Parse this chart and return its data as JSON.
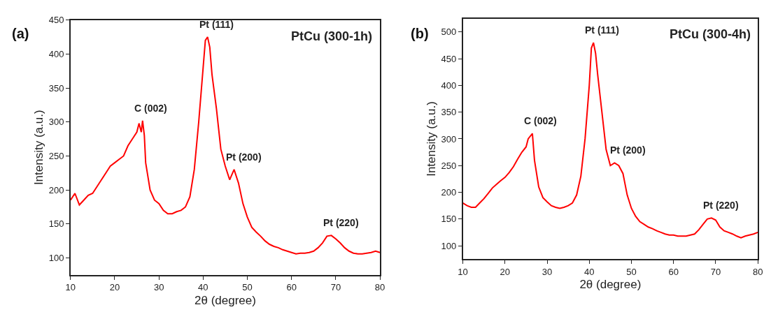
{
  "chart_data": [
    {
      "type": "line",
      "title": "PtCu (300-1h)",
      "xlabel": "2θ (degree)",
      "ylabel": "Intensity (a.u.)",
      "xlim": [
        10,
        80
      ],
      "xticks": [
        10,
        20,
        30,
        40,
        50,
        60,
        70,
        80
      ],
      "ylim": [
        75,
        450
      ],
      "yticks": [
        100,
        150,
        200,
        250,
        300,
        350,
        400,
        450
      ],
      "marker": "none",
      "line_style": "solid",
      "annotations": [
        "(a)",
        {
          "text": "C (002)",
          "x": 26.3,
          "y": 302
        },
        {
          "text": "Pt (111)",
          "x": 41,
          "y": 425
        },
        {
          "text": "Pt (200)",
          "x": 47,
          "y": 230
        },
        {
          "text": "Pt (220)",
          "x": 69,
          "y": 133
        }
      ],
      "x": [
        10,
        11,
        12,
        13,
        14,
        15,
        16,
        17,
        18,
        19,
        20,
        21,
        22,
        23,
        24,
        25,
        25.5,
        26,
        26.3,
        26.7,
        27,
        28,
        29,
        30,
        31,
        32,
        33,
        34,
        35,
        36,
        37,
        38,
        39,
        40,
        40.5,
        41,
        41.5,
        42,
        43,
        44,
        45,
        46,
        47,
        48,
        49,
        50,
        51,
        52,
        53,
        54,
        55,
        56,
        57,
        58,
        59,
        60,
        61,
        62,
        63,
        64,
        65,
        66,
        67,
        68,
        69,
        70,
        71,
        72,
        73,
        74,
        75,
        76,
        77,
        78,
        79,
        80
      ],
      "series": [
        {
          "color": "#ff0000",
          "values": [
            185,
            195,
            178,
            185,
            192,
            195,
            205,
            215,
            225,
            235,
            240,
            245,
            250,
            265,
            275,
            285,
            298,
            285,
            302,
            280,
            240,
            200,
            185,
            180,
            170,
            165,
            165,
            168,
            170,
            175,
            190,
            230,
            300,
            380,
            420,
            425,
            410,
            370,
            320,
            260,
            235,
            215,
            230,
            210,
            180,
            160,
            145,
            138,
            132,
            125,
            120,
            117,
            115,
            112,
            110,
            108,
            106,
            107,
            107,
            108,
            110,
            115,
            122,
            132,
            133,
            128,
            122,
            115,
            110,
            107,
            106,
            106,
            107,
            108,
            110,
            108
          ]
        }
      ]
    },
    {
      "type": "line",
      "title": "PtCu (300-4h)",
      "xlabel": "2θ (degree)",
      "ylabel": "Intensity (a.u.)",
      "xlim": [
        10,
        80
      ],
      "xticks": [
        10,
        20,
        30,
        40,
        50,
        60,
        70,
        80
      ],
      "ylim": [
        75,
        525
      ],
      "yticks": [
        100,
        150,
        200,
        250,
        300,
        350,
        400,
        450,
        500
      ],
      "marker": "none",
      "line_style": "solid",
      "annotations": [
        "(b)",
        {
          "text": "C (002)",
          "x": 26.5,
          "y": 310
        },
        {
          "text": "Pt (111)",
          "x": 41,
          "y": 480
        },
        {
          "text": "Pt (200)",
          "x": 47,
          "y": 255
        },
        {
          "text": "Pt (220)",
          "x": 69,
          "y": 152
        }
      ],
      "x": [
        10,
        11,
        12,
        13,
        14,
        15,
        16,
        17,
        18,
        19,
        20,
        21,
        22,
        23,
        24,
        25,
        25.5,
        26,
        26.5,
        27,
        28,
        29,
        30,
        31,
        32,
        33,
        34,
        35,
        36,
        37,
        38,
        39,
        40,
        40.5,
        41,
        41.5,
        42,
        43,
        44,
        45,
        46,
        47,
        48,
        49,
        50,
        51,
        52,
        53,
        54,
        55,
        56,
        57,
        58,
        59,
        60,
        61,
        62,
        63,
        64,
        65,
        66,
        67,
        68,
        69,
        70,
        71,
        72,
        73,
        74,
        75,
        76,
        77,
        78,
        79,
        80
      ],
      "series": [
        {
          "color": "#ff0000",
          "values": [
            180,
            175,
            172,
            172,
            180,
            188,
            198,
            208,
            215,
            222,
            228,
            237,
            248,
            262,
            275,
            285,
            300,
            305,
            310,
            260,
            210,
            190,
            182,
            175,
            172,
            170,
            172,
            175,
            180,
            195,
            230,
            300,
            400,
            470,
            480,
            460,
            420,
            350,
            280,
            250,
            255,
            250,
            235,
            195,
            170,
            155,
            145,
            140,
            135,
            132,
            128,
            125,
            122,
            120,
            120,
            118,
            118,
            118,
            120,
            122,
            130,
            140,
            150,
            152,
            148,
            135,
            128,
            125,
            122,
            118,
            115,
            118,
            120,
            122,
            125
          ]
        }
      ]
    }
  ]
}
